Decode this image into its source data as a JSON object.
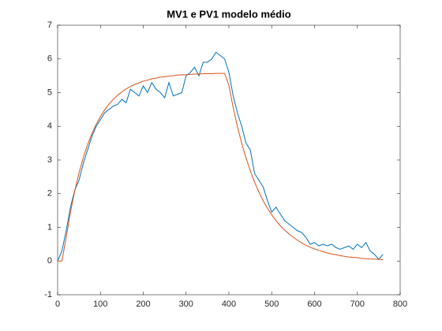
{
  "chart_data": {
    "type": "line",
    "title": "MV1 e PV1 modelo médio",
    "x": [
      0,
      10,
      20,
      30,
      40,
      50,
      60,
      70,
      80,
      90,
      100,
      110,
      120,
      130,
      140,
      150,
      160,
      170,
      180,
      190,
      200,
      210,
      220,
      230,
      240,
      250,
      260,
      270,
      280,
      290,
      300,
      310,
      320,
      330,
      340,
      350,
      360,
      370,
      380,
      390,
      400,
      410,
      420,
      430,
      440,
      450,
      460,
      470,
      480,
      490,
      500,
      510,
      520,
      530,
      540,
      550,
      560,
      570,
      580,
      590,
      600,
      610,
      620,
      630,
      640,
      650,
      660,
      670,
      680,
      690,
      700,
      710,
      720,
      730,
      740,
      750,
      760
    ],
    "series": [
      {
        "color": "#0072bd",
        "values": [
          0,
          0.3,
          0.9,
          1.6,
          2.1,
          2.4,
          2.9,
          3.3,
          3.7,
          4.0,
          4.2,
          4.4,
          4.5,
          4.6,
          4.65,
          4.8,
          4.7,
          5.1,
          5.0,
          4.9,
          5.2,
          5.0,
          5.3,
          5.1,
          5.0,
          4.85,
          5.3,
          4.9,
          4.95,
          5.0,
          5.5,
          5.6,
          5.75,
          5.5,
          5.9,
          5.9,
          6.0,
          6.2,
          6.1,
          6.0,
          5.6,
          4.9,
          4.4,
          4.0,
          3.5,
          3.3,
          2.6,
          2.4,
          2.2,
          1.8,
          1.45,
          1.6,
          1.4,
          1.2,
          1.1,
          1.0,
          0.9,
          0.85,
          0.7,
          0.5,
          0.55,
          0.45,
          0.5,
          0.45,
          0.5,
          0.4,
          0.35,
          0.4,
          0.45,
          0.35,
          0.5,
          0.4,
          0.55,
          0.3,
          0.2,
          0.05,
          0.2
        ]
      },
      {
        "color": "#d95319",
        "values": [
          0,
          0,
          0.7,
          1.45,
          2.08,
          2.62,
          3.07,
          3.46,
          3.78,
          4.06,
          4.29,
          4.49,
          4.66,
          4.8,
          4.92,
          5.02,
          5.11,
          5.18,
          5.24,
          5.29,
          5.34,
          5.37,
          5.41,
          5.43,
          5.46,
          5.47,
          5.49,
          5.5,
          5.52,
          5.53,
          5.53,
          5.54,
          5.55,
          5.55,
          5.56,
          5.56,
          5.56,
          5.57,
          5.57,
          5.57,
          5.21,
          4.56,
          3.99,
          3.49,
          3.06,
          2.68,
          2.34,
          2.05,
          1.79,
          1.57,
          1.37,
          1.2,
          1.05,
          0.92,
          0.81,
          0.71,
          0.62,
          0.54,
          0.47,
          0.41,
          0.36,
          0.32,
          0.28,
          0.24,
          0.21,
          0.19,
          0.16,
          0.14,
          0.12,
          0.11,
          0.1,
          0.08,
          0.07,
          0.06,
          0.06,
          0.05,
          0.04
        ]
      }
    ],
    "xlim": [
      0,
      800
    ],
    "xticks": [
      0,
      100,
      200,
      300,
      400,
      500,
      600,
      700,
      800
    ],
    "ylim": [
      -1,
      7
    ],
    "yticks": [
      -1,
      0,
      1,
      2,
      3,
      4,
      5,
      6,
      7
    ],
    "grid": false
  }
}
